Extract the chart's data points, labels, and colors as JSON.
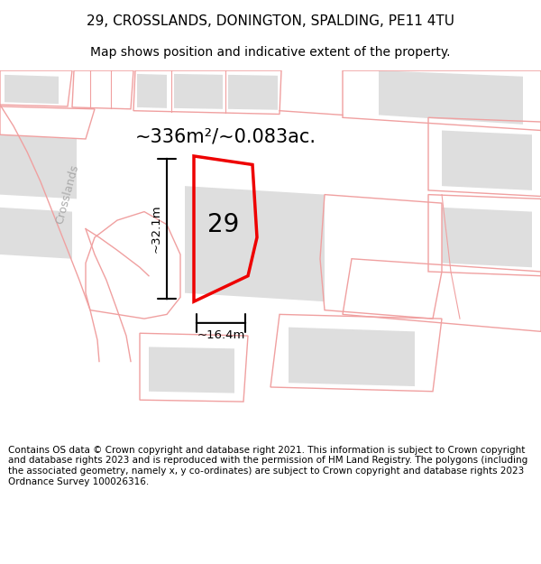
{
  "title": "29, CROSSLANDS, DONINGTON, SPALDING, PE11 4TU",
  "subtitle": "Map shows position and indicative extent of the property.",
  "area_text": "~336m²/~0.083ac.",
  "label_number": "29",
  "dim_width": "~16.4m",
  "dim_height": "~32.1m",
  "footer": "Contains OS data © Crown copyright and database right 2021. This information is subject to Crown copyright and database rights 2023 and is reproduced with the permission of HM Land Registry. The polygons (including the associated geometry, namely x, y co-ordinates) are subject to Crown copyright and database rights 2023 Ordnance Survey 100026316.",
  "bg_color": "#ffffff",
  "map_bg": "#f8f8f8",
  "outline_color": "#f0a0a0",
  "building_color": "#dedede",
  "highlight_color": "#ee0000",
  "street_label": "Crosslands",
  "title_fontsize": 11,
  "subtitle_fontsize": 10,
  "footer_fontsize": 7.5
}
